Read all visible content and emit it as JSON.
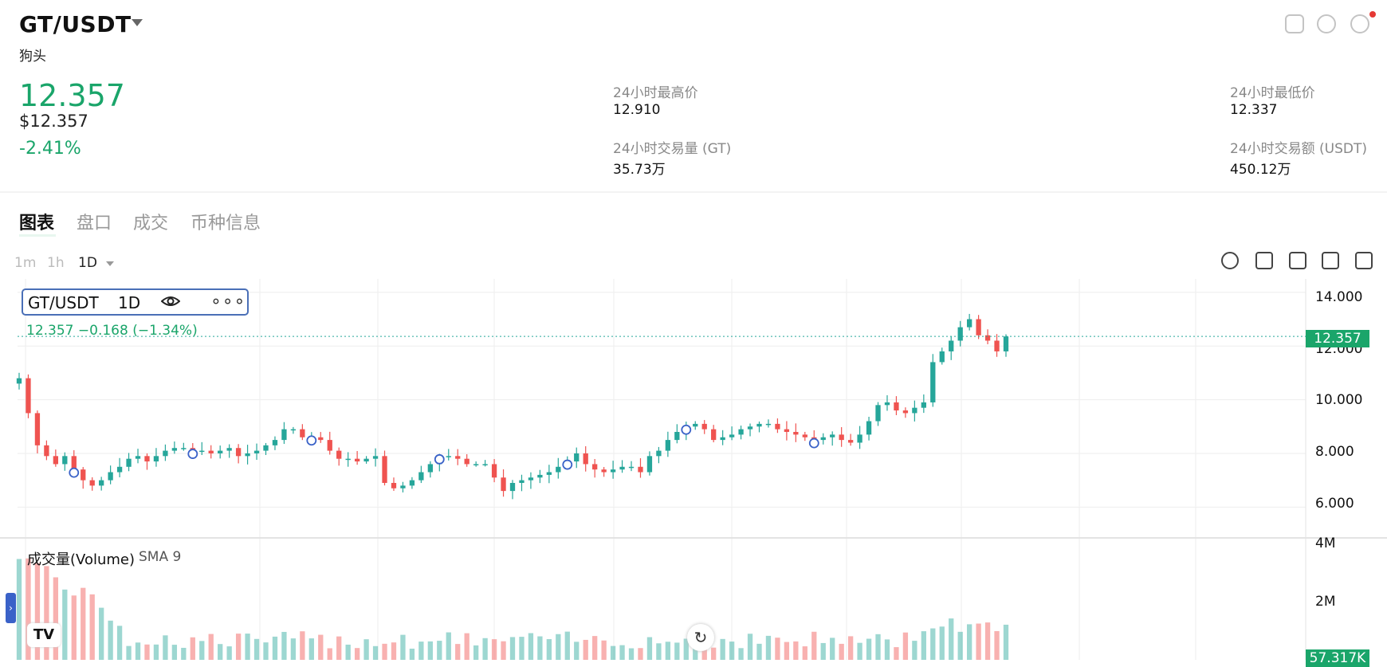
{
  "header": {
    "pair": "GT/USDT",
    "name": "狗头",
    "price": "12.357",
    "usd_price": "$12.357",
    "change_pct": "-2.41%",
    "stats": [
      {
        "label": "24小时最高价",
        "value": "12.910"
      },
      {
        "label": "24小时最低价",
        "value": "12.337"
      },
      {
        "label": "24小时交易量 (GT)",
        "value": "35.73万"
      },
      {
        "label": "24小时交易额 (USDT)",
        "value": "450.12万"
      }
    ]
  },
  "tabs": [
    "图表",
    "盘口",
    "成交",
    "币种信息"
  ],
  "active_tab": "图表",
  "timeframes": [
    "1m",
    "1h",
    "1D"
  ],
  "active_timeframe": "1D",
  "icons": [
    "share-icon",
    "compass-icon",
    "settings-icon",
    "indicator-icon",
    "candle-type-icon",
    "line-chart-icon",
    "sliders-icon",
    "trash-icon"
  ],
  "legend": {
    "symbol": "GT/USDT",
    "interval": "1D",
    "ohlc": "12.357  −0.168  (−1.34%)"
  },
  "volume_label": "成交量(Volume)",
  "volume_sma": "SMA 9",
  "price_tag": "12.357",
  "volume_tag": "57.317K",
  "colors": {
    "up": "#26a69a",
    "down": "#ef5350",
    "accent": "#1aa56a"
  },
  "chart_data": {
    "type": "candlestick",
    "price_axis_ticks": [
      "14.000",
      "12.000",
      "10.000",
      "8.000",
      "6.000"
    ],
    "price_ylim": [
      5.0,
      14.5
    ],
    "volume_axis_ticks": [
      "4M",
      "2M"
    ],
    "current_price": 12.357,
    "close_series": [
      10.8,
      9.5,
      8.3,
      7.9,
      7.6,
      7.9,
      7.4,
      7.0,
      6.8,
      7.0,
      7.3,
      7.5,
      7.8,
      7.9,
      7.7,
      7.9,
      8.1,
      8.2,
      8.2,
      8.1,
      8.1,
      8.0,
      8.1,
      8.2,
      7.9,
      8.0,
      8.1,
      8.3,
      8.5,
      8.9,
      8.9,
      8.6,
      8.6,
      8.5,
      8.1,
      7.8,
      7.8,
      7.7,
      7.8,
      7.9,
      6.9,
      6.7,
      6.8,
      7.0,
      7.3,
      7.6,
      7.9,
      7.9,
      7.8,
      7.6,
      7.6,
      7.6,
      7.1,
      6.6,
      6.9,
      7.0,
      7.1,
      7.2,
      7.3,
      7.5,
      7.7,
      8.0,
      7.6,
      7.4,
      7.3,
      7.4,
      7.5,
      7.5,
      7.3,
      7.9,
      8.1,
      8.5,
      8.8,
      9.0,
      9.1,
      8.9,
      8.5,
      8.6,
      8.7,
      8.9,
      9.0,
      9.1,
      9.1,
      8.9,
      8.8,
      8.7,
      8.6,
      8.5,
      8.6,
      8.7,
      8.5,
      8.4,
      8.7,
      9.2,
      9.8,
      9.9,
      9.6,
      9.5,
      9.7,
      9.9,
      11.4,
      11.8,
      12.2,
      12.7,
      13.0,
      12.4,
      12.2,
      11.8,
      12.357
    ]
  }
}
